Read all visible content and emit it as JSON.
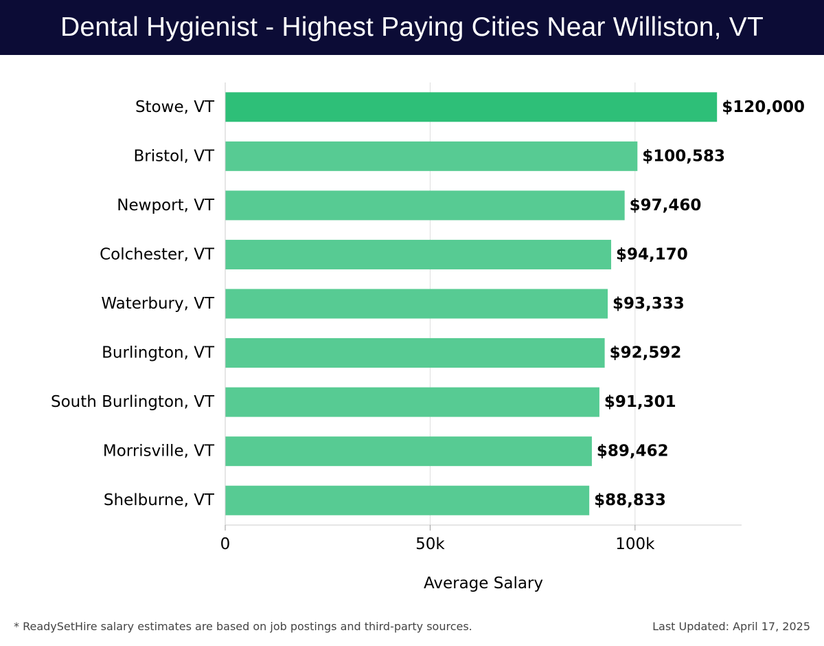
{
  "header": {
    "title": "Dental Hygienist - Highest Paying Cities Near Williston, VT"
  },
  "chart_data": {
    "type": "bar",
    "orientation": "horizontal",
    "categories": [
      "Stowe, VT",
      "Bristol, VT",
      "Newport, VT",
      "Colchester, VT",
      "Waterbury, VT",
      "Burlington, VT",
      "South Burlington, VT",
      "Morrisville, VT",
      "Shelburne, VT"
    ],
    "values": [
      120000,
      100583,
      97460,
      94170,
      93333,
      92592,
      91301,
      89462,
      88833
    ],
    "value_labels": [
      "$120,000",
      "$100,583",
      "$97,460",
      "$94,170",
      "$93,333",
      "$92,592",
      "$91,301",
      "$89,462",
      "$88,833"
    ],
    "xlabel": "Average Salary",
    "ylabel": "",
    "xlim": [
      0,
      126000
    ],
    "xticks": [
      0,
      50000,
      100000
    ],
    "xtick_labels": [
      "0",
      "50k",
      "100k"
    ],
    "grid": true,
    "colors": {
      "highlight": "#2ebf78",
      "bar": "#57cb93",
      "grid": "#dddddd",
      "axis": "#cccccc",
      "text": "#000000"
    }
  },
  "footer": {
    "note": "* ReadySetHire salary estimates are based on job postings and third-party sources.",
    "updated": "Last Updated: April 17, 2025"
  }
}
